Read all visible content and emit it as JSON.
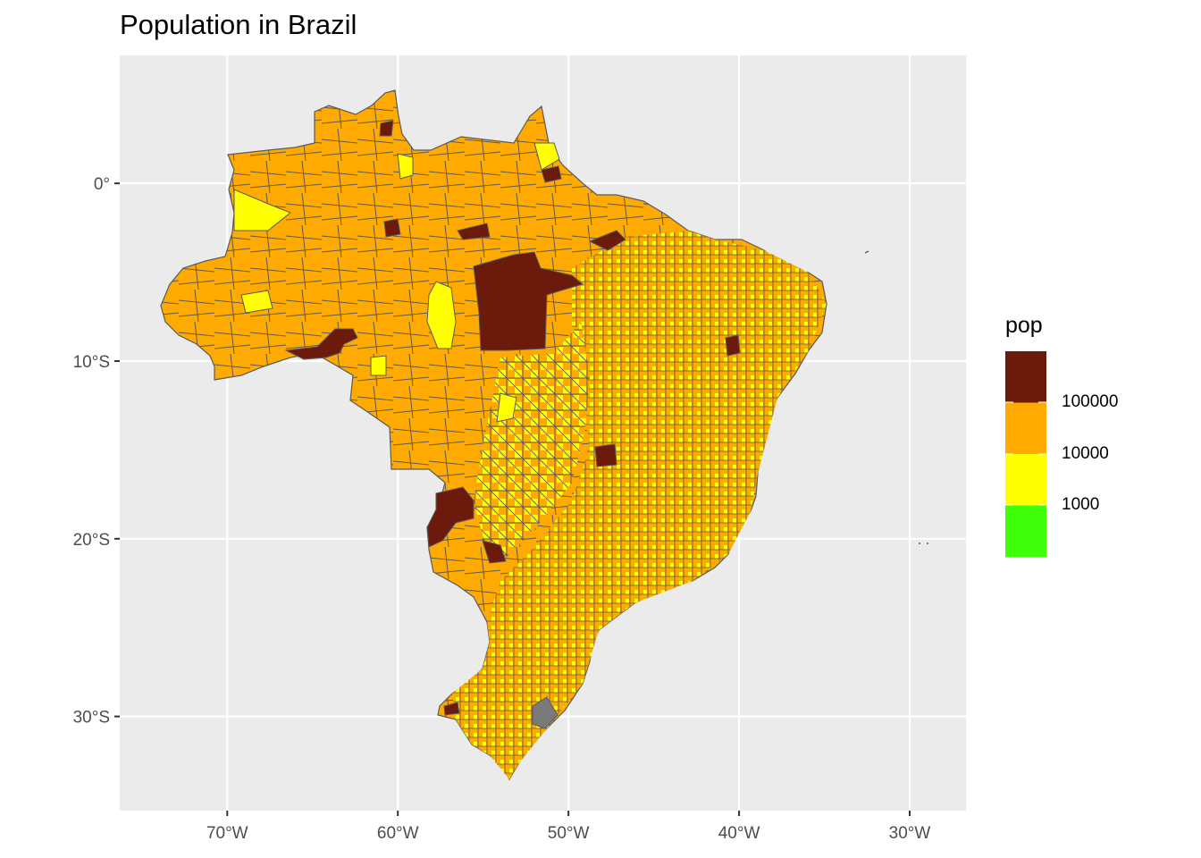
{
  "title": "Population in Brazil",
  "legend": {
    "title": "pop",
    "keys": [
      {
        "color": "#6B1A0C"
      },
      {
        "color": "#FFAA00"
      },
      {
        "color": "#FFFF00"
      },
      {
        "color": "#3FFF0A"
      }
    ],
    "break_labels": [
      "100000",
      "10000",
      "1000"
    ]
  },
  "axes": {
    "x_ticks": [
      "70°W",
      "60°W",
      "50°W",
      "40°W",
      "30°W"
    ],
    "y_ticks": [
      "0°",
      "10°S",
      "20°S",
      "30°S"
    ],
    "x_values": [
      -70,
      -60,
      -50,
      -40,
      -30
    ],
    "y_values": [
      0,
      -10,
      -20,
      -30
    ],
    "xlim": [
      -76.3,
      -26.7
    ],
    "ylim": [
      -35.3,
      7.2
    ]
  },
  "colors": {
    "panel_bg": "#EBEBEB",
    "grid": "#FFFFFF",
    "border": "#5A5A5A",
    "low": "#FFFF00",
    "mid": "#FFAA00",
    "high": "#6B1A0C"
  }
}
